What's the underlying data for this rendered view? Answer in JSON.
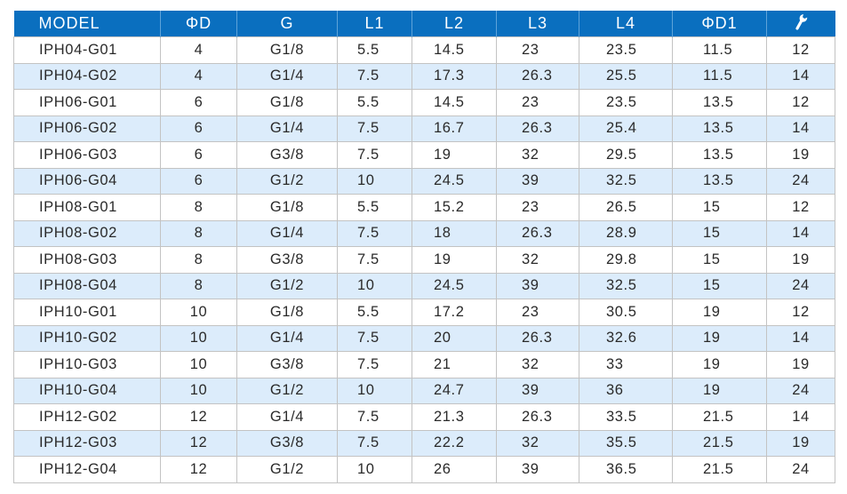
{
  "header": {
    "model": "MODEL",
    "d": "ΦD",
    "g": "G",
    "l1": "L1",
    "l2": "L2",
    "l3": "L3",
    "l4": "L4",
    "d1": "ΦD1",
    "wrench_icon": "wrench-icon"
  },
  "colors": {
    "header_bg": "#0a6fbf",
    "stripe_bg": "#dcecfb",
    "header_text": "#ffffff"
  },
  "rows": [
    [
      "IPH04-G01",
      "4",
      "G1/8",
      "5.5",
      "14.5",
      "23",
      "23.5",
      "11.5",
      "12"
    ],
    [
      "IPH04-G02",
      "4",
      "G1/4",
      "7.5",
      "17.3",
      "26.3",
      "25.5",
      "11.5",
      "14"
    ],
    [
      "IPH06-G01",
      "6",
      "G1/8",
      "5.5",
      "14.5",
      "23",
      "23.5",
      "13.5",
      "12"
    ],
    [
      "IPH06-G02",
      "6",
      "G1/4",
      "7.5",
      "16.7",
      "26.3",
      "25.4",
      "13.5",
      "14"
    ],
    [
      "IPH06-G03",
      "6",
      "G3/8",
      "7.5",
      "19",
      "32",
      "29.5",
      "13.5",
      "19"
    ],
    [
      "IPH06-G04",
      "6",
      "G1/2",
      "10",
      "24.5",
      "39",
      "32.5",
      "13.5",
      "24"
    ],
    [
      "IPH08-G01",
      "8",
      "G1/8",
      "5.5",
      "15.2",
      "23",
      "26.5",
      "15",
      "12"
    ],
    [
      "IPH08-G02",
      "8",
      "G1/4",
      "7.5",
      "18",
      "26.3",
      "28.9",
      "15",
      "14"
    ],
    [
      "IPH08-G03",
      "8",
      "G3/8",
      "7.5",
      "19",
      "32",
      "29.8",
      "15",
      "19"
    ],
    [
      "IPH08-G04",
      "8",
      "G1/2",
      "10",
      "24.5",
      "39",
      "32.5",
      "15",
      "24"
    ],
    [
      "IPH10-G01",
      "10",
      "G1/8",
      "5.5",
      "17.2",
      "23",
      "30.5",
      "19",
      "12"
    ],
    [
      "IPH10-G02",
      "10",
      "G1/4",
      "7.5",
      "20",
      "26.3",
      "32.6",
      "19",
      "14"
    ],
    [
      "IPH10-G03",
      "10",
      "G3/8",
      "7.5",
      "21",
      "32",
      "33",
      "19",
      "19"
    ],
    [
      "IPH10-G04",
      "10",
      "G1/2",
      "10",
      "24.7",
      "39",
      "36",
      "19",
      "24"
    ],
    [
      "IPH12-G02",
      "12",
      "G1/4",
      "7.5",
      "21.3",
      "26.3",
      "33.5",
      "21.5",
      "14"
    ],
    [
      "IPH12-G03",
      "12",
      "G3/8",
      "7.5",
      "22.2",
      "32",
      "35.5",
      "21.5",
      "19"
    ],
    [
      "IPH12-G04",
      "12",
      "G1/2",
      "10",
      "26",
      "39",
      "36.5",
      "21.5",
      "24"
    ]
  ]
}
